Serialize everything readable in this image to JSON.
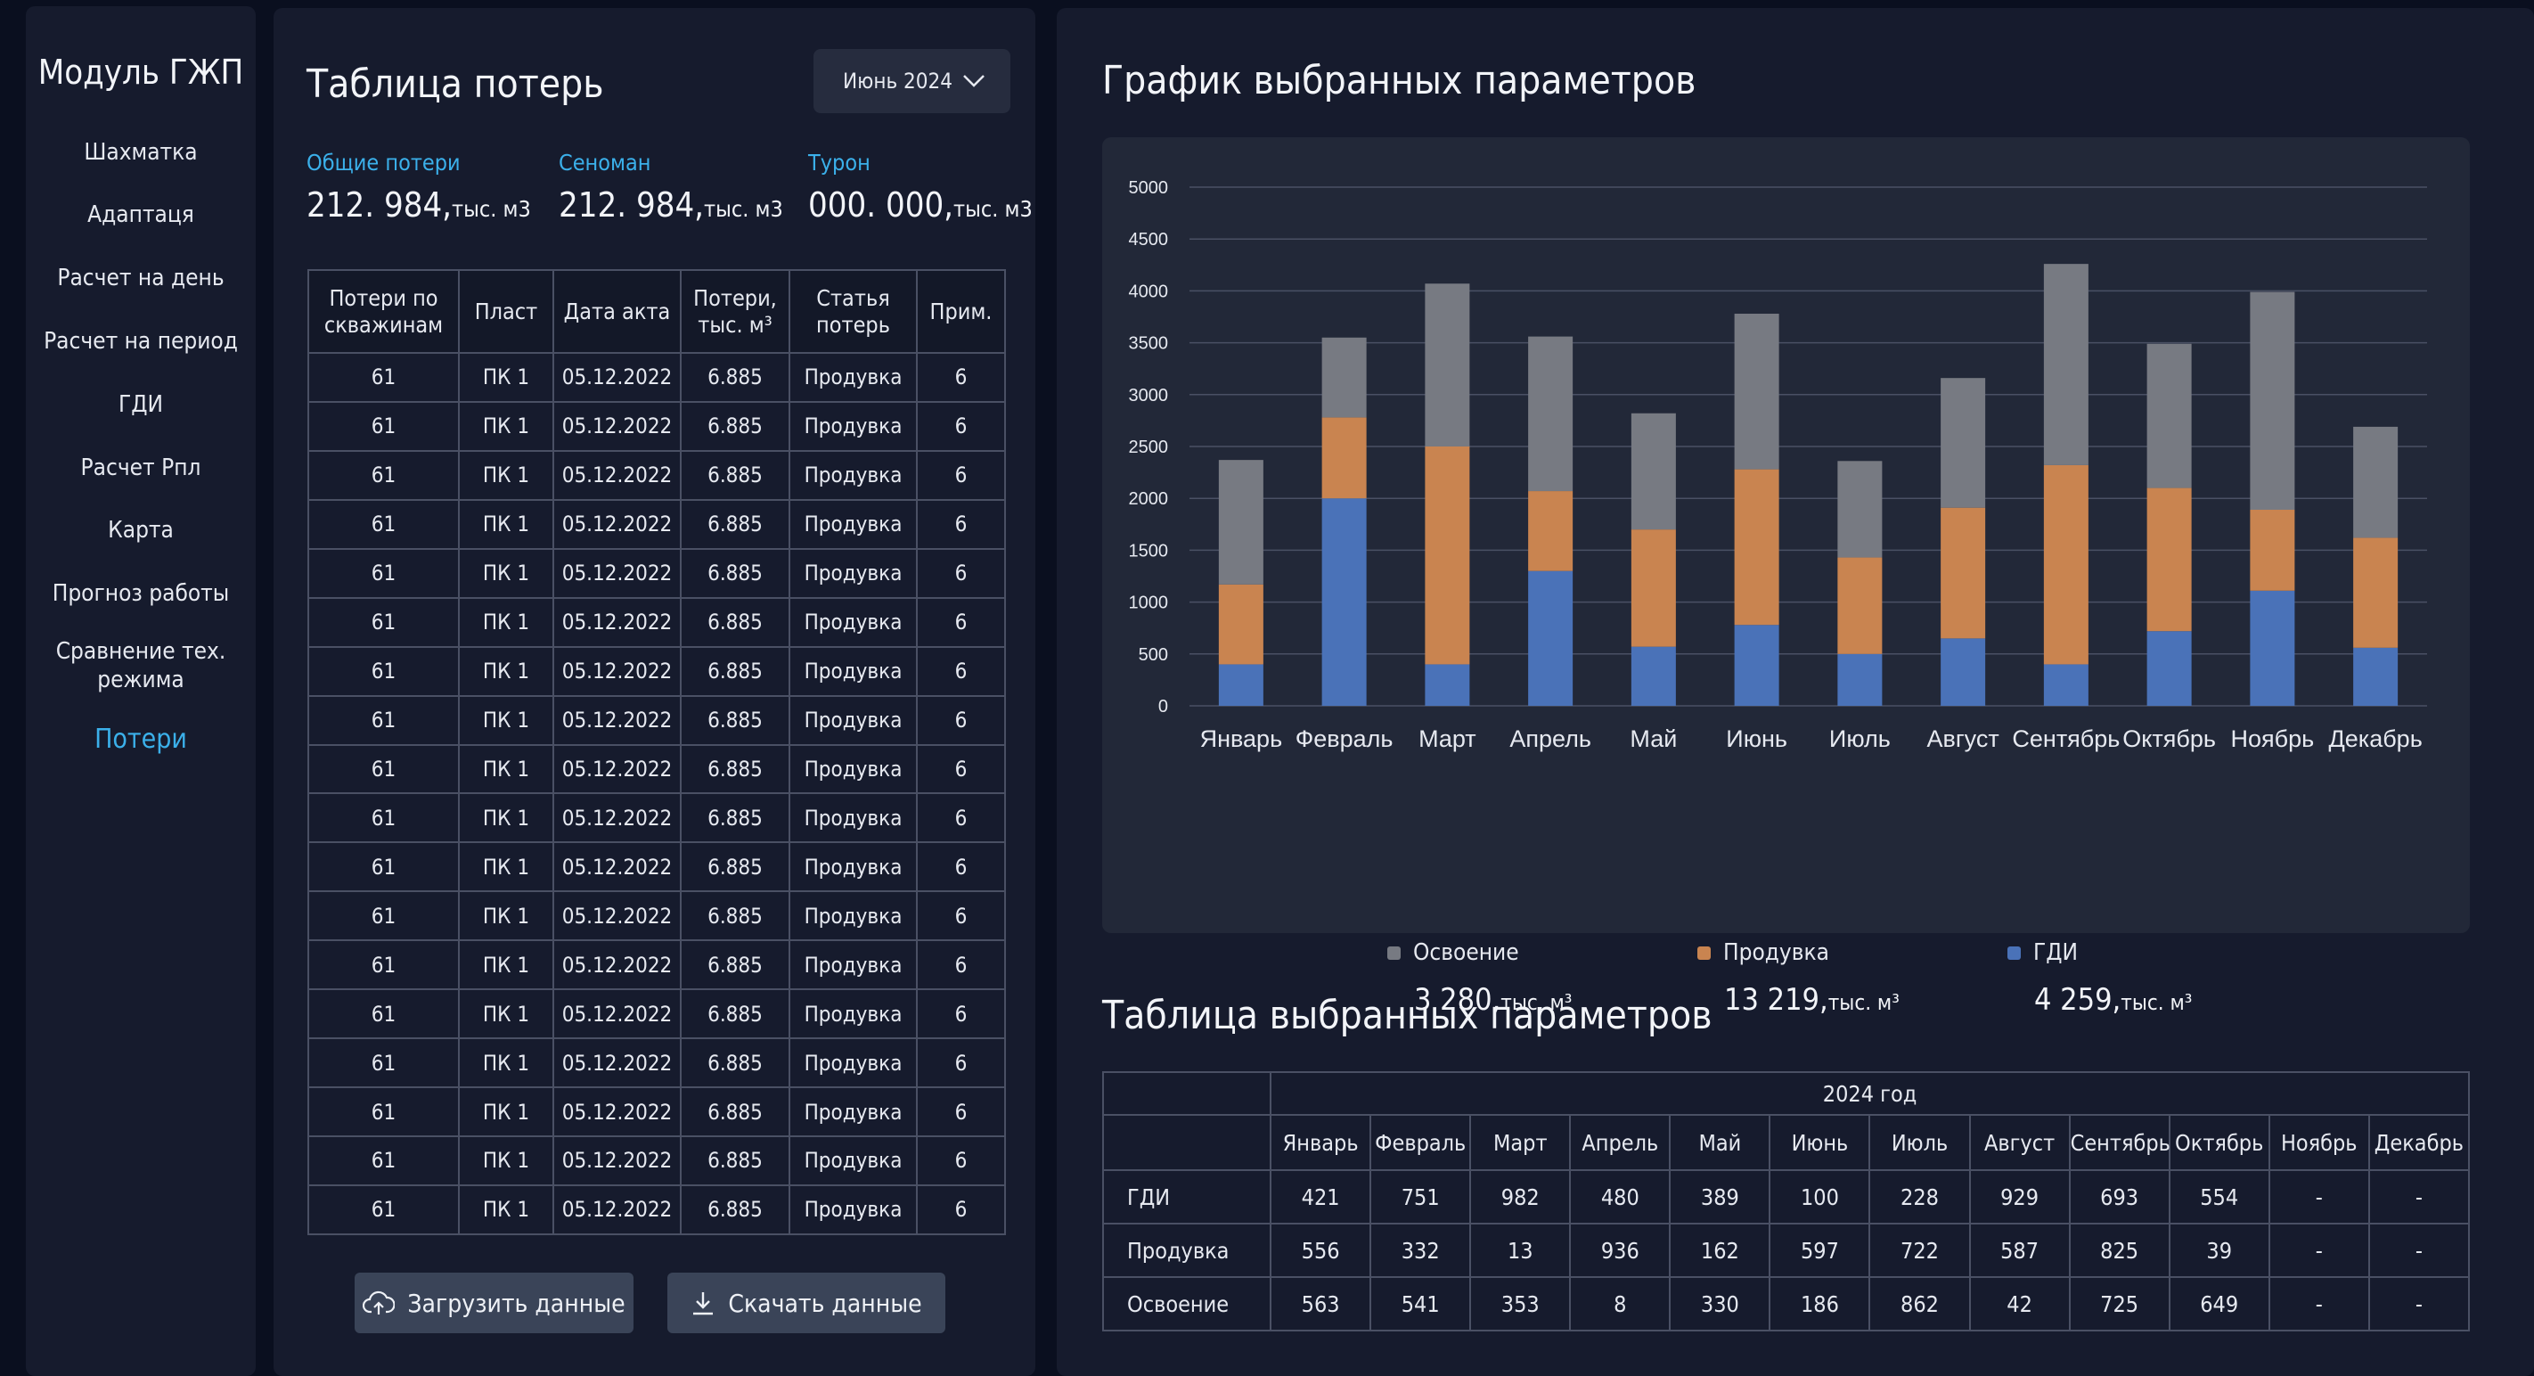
{
  "sidebar": {
    "title": "Модуль ГЖП",
    "items": [
      {
        "label": "Шахматка",
        "name": "sidebar-item-shakhmatka",
        "top": 0,
        "h": 48
      },
      {
        "label": "Адаптаця",
        "name": "sidebar-item-adaptation",
        "top": 70,
        "h": 48
      },
      {
        "label": "Расчет на день",
        "name": "sidebar-item-calc-day",
        "top": 141,
        "h": 48
      },
      {
        "label": "Расчет на период",
        "name": "sidebar-item-calc-period",
        "top": 212,
        "h": 48
      },
      {
        "label": "ГДИ",
        "name": "sidebar-item-gdi",
        "top": 283,
        "h": 48
      },
      {
        "label": "Расчет Рпл",
        "name": "sidebar-item-calc-rpl",
        "top": 354,
        "h": 48
      },
      {
        "label": "Карта",
        "name": "sidebar-item-map",
        "top": 424,
        "h": 48
      },
      {
        "label": "Прогноз работы",
        "name": "sidebar-item-forecast",
        "top": 495,
        "h": 48
      },
      {
        "label": "Сравнение тех.\nрежима",
        "name": "sidebar-item-compare-mode",
        "top": 562,
        "h": 76
      },
      {
        "label": "Потери",
        "name": "sidebar-item-losses",
        "top": 655,
        "h": 56,
        "active": true
      }
    ]
  },
  "losses": {
    "title": "Таблица потерь",
    "month": "Июнь 2024",
    "summary": [
      {
        "label": "Общие потери",
        "value": "212. 984,",
        "unit": "тыс. м3"
      },
      {
        "label": "Сеноман",
        "value": "212. 984,",
        "unit": "тыс. м3"
      },
      {
        "label": "Турон",
        "value": "000. 000,",
        "unit": "тыс. м3"
      }
    ],
    "headers": [
      "Потери по скважинам",
      "Пласт",
      "Дата акта",
      "Потери, тыс. м³",
      "Статья потерь",
      "Прим."
    ],
    "rows": [
      [
        "61",
        "ПК 1",
        "05.12.2022",
        "6.885",
        "Продувка",
        "6"
      ],
      [
        "61",
        "ПК 1",
        "05.12.2022",
        "6.885",
        "Продувка",
        "6"
      ],
      [
        "61",
        "ПК 1",
        "05.12.2022",
        "6.885",
        "Продувка",
        "6"
      ],
      [
        "61",
        "ПК 1",
        "05.12.2022",
        "6.885",
        "Продувка",
        "6"
      ],
      [
        "61",
        "ПК 1",
        "05.12.2022",
        "6.885",
        "Продувка",
        "6"
      ],
      [
        "61",
        "ПК 1",
        "05.12.2022",
        "6.885",
        "Продувка",
        "6"
      ],
      [
        "61",
        "ПК 1",
        "05.12.2022",
        "6.885",
        "Продувка",
        "6"
      ],
      [
        "61",
        "ПК 1",
        "05.12.2022",
        "6.885",
        "Продувка",
        "6"
      ],
      [
        "61",
        "ПК 1",
        "05.12.2022",
        "6.885",
        "Продувка",
        "6"
      ],
      [
        "61",
        "ПК 1",
        "05.12.2022",
        "6.885",
        "Продувка",
        "6"
      ],
      [
        "61",
        "ПК 1",
        "05.12.2022",
        "6.885",
        "Продувка",
        "6"
      ],
      [
        "61",
        "ПК 1",
        "05.12.2022",
        "6.885",
        "Продувка",
        "6"
      ],
      [
        "61",
        "ПК 1",
        "05.12.2022",
        "6.885",
        "Продувка",
        "6"
      ],
      [
        "61",
        "ПК 1",
        "05.12.2022",
        "6.885",
        "Продувка",
        "6"
      ],
      [
        "61",
        "ПК 1",
        "05.12.2022",
        "6.885",
        "Продувка",
        "6"
      ],
      [
        "61",
        "ПК 1",
        "05.12.2022",
        "6.885",
        "Продувка",
        "6"
      ],
      [
        "61",
        "ПК 1",
        "05.12.2022",
        "6.885",
        "Продувка",
        "6"
      ],
      [
        "61",
        "ПК 1",
        "05.12.2022",
        "6.885",
        "Продувка",
        "6"
      ]
    ],
    "upload_label": "Загрузить данные",
    "download_label": "Скачать данные"
  },
  "chart_title": "График выбранных параметров",
  "chart_data": {
    "type": "bar",
    "stacked": true,
    "categories": [
      "Январь",
      "Февраль",
      "Март",
      "Апрель",
      "Май",
      "Июнь",
      "Июль",
      "Август",
      "Сентябрь",
      "Октябрь",
      "Ноябрь",
      "Декабрь"
    ],
    "series": [
      {
        "name": "ГДИ",
        "color": "#4a72b8",
        "values": [
          400,
          2000,
          400,
          1300,
          570,
          780,
          500,
          650,
          400,
          720,
          1110,
          560
        ]
      },
      {
        "name": "Продувка",
        "color": "#c98450",
        "values": [
          770,
          780,
          2100,
          770,
          1130,
          1500,
          930,
          1260,
          1920,
          1380,
          780,
          1060
        ]
      },
      {
        "name": "Освоение",
        "color": "#777a82",
        "values": [
          1200,
          770,
          1570,
          1490,
          1120,
          1500,
          930,
          1250,
          1940,
          1390,
          2100,
          1070
        ]
      }
    ],
    "ylim": [
      0,
      5000
    ],
    "yticks": [
      0,
      500,
      1000,
      1500,
      2000,
      2500,
      3000,
      3500,
      4000,
      4500,
      5000
    ],
    "grid": true,
    "legend": [
      {
        "name": "Освоение",
        "color": "#777a82",
        "value": "3 280,",
        "unit": "тыс. м³"
      },
      {
        "name": "Продувка",
        "color": "#c98450",
        "value": "13 219,",
        "unit": "тыс. м³"
      },
      {
        "name": "ГДИ",
        "color": "#4a72b8",
        "value": "4 259,",
        "unit": "тыс. м³"
      }
    ]
  },
  "params": {
    "title": "Таблица выбранных параметров",
    "year": "2024 год",
    "months": [
      "Январь",
      "Февраль",
      "Март",
      "Апрель",
      "Май",
      "Июнь",
      "Июль",
      "Август",
      "Сентябрь",
      "Октябрь",
      "Ноябрь",
      "Декабрь"
    ],
    "rows": [
      {
        "label": "ГДИ",
        "values": [
          "421",
          "751",
          "982",
          "480",
          "389",
          "100",
          "228",
          "929",
          "693",
          "554",
          "-",
          "-"
        ]
      },
      {
        "label": "Продувка",
        "values": [
          "556",
          "332",
          "13",
          "936",
          "162",
          "597",
          "722",
          "587",
          "825",
          "39",
          "-",
          "-"
        ]
      },
      {
        "label": "Освоение",
        "values": [
          "563",
          "541",
          "353",
          "8",
          "330",
          "186",
          "862",
          "42",
          "725",
          "649",
          "-",
          "-"
        ]
      }
    ]
  }
}
